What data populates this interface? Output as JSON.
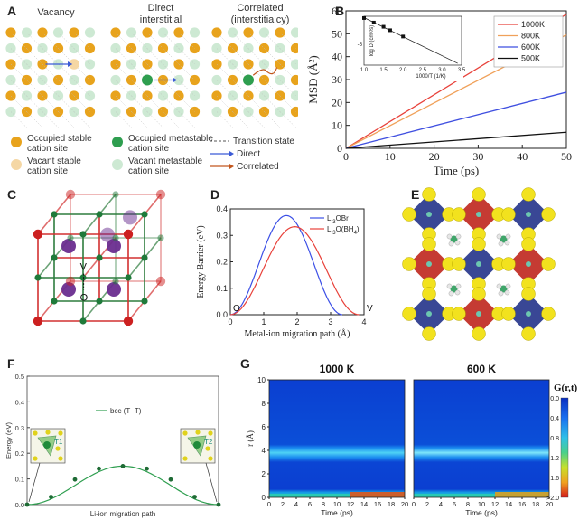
{
  "panels": {
    "a": {
      "label": "A",
      "titles": [
        "Vacancy",
        "Direct interstitial",
        "Correlated (interstitialcy)"
      ],
      "title_lines": {
        "direct": [
          "Direct",
          "interstitial"
        ],
        "correlated": [
          "Correlated",
          "(interstitialcy)"
        ]
      },
      "legend": {
        "occupied_stable": [
          "Occupied stable",
          "cation site"
        ],
        "vacant_stable": [
          "Vacant stable",
          "cation site"
        ],
        "occupied_metastable": [
          "Occupied metastable",
          "cation site"
        ],
        "vacant_metastable": [
          "Vacant metastable",
          "cation site"
        ],
        "transition": "Transition state",
        "direct": "Direct",
        "correlated": "Correlated"
      },
      "colors": {
        "occupied_stable": "#e8a31c",
        "vacant_stable": "#f5d7a4",
        "occupied_metastable": "#2e9e4f",
        "vacant_metastable": "#cde9d3",
        "direct": "#3b5bd6",
        "correlated": "#c2561d"
      }
    },
    "b": {
      "label": "B"
    },
    "c": {
      "label": "C",
      "atom_labels": [
        "V",
        "O"
      ]
    },
    "d": {
      "label": "D",
      "end_labels": [
        "O",
        "V"
      ]
    },
    "e": {
      "label": "E"
    },
    "f": {
      "label": "F",
      "site_labels": [
        "T1",
        "T2"
      ]
    },
    "g": {
      "label": "G"
    }
  },
  "chart_data": [
    {
      "id": "b",
      "type": "line",
      "xlabel": "Time (ps)",
      "ylabel": "MSD (Å²)",
      "xlim": [
        0,
        50
      ],
      "ylim": [
        0,
        60
      ],
      "xticks": [
        0,
        10,
        20,
        30,
        40,
        50
      ],
      "yticks": [
        0,
        10,
        20,
        30,
        40,
        50,
        60
      ],
      "legend_position": "top-right",
      "series": [
        {
          "name": "1000K",
          "color": "#e8413a",
          "x": [
            0,
            50
          ],
          "y": [
            0,
            58.5
          ]
        },
        {
          "name": "800K",
          "color": "#f0a15a",
          "x": [
            0,
            50
          ],
          "y": [
            0,
            49.5
          ]
        },
        {
          "name": "600K",
          "color": "#3f4fe0",
          "x": [
            0,
            50
          ],
          "y": [
            0,
            24.5
          ]
        },
        {
          "name": "500K",
          "color": "#111111",
          "x": [
            0,
            50
          ],
          "y": [
            0,
            7
          ]
        }
      ],
      "inset": {
        "type": "scatter",
        "xlabel": "1000/T (1/K)",
        "ylabel": "log D (cm²/s)",
        "xlim": [
          1.0,
          3.5
        ],
        "ylim": [
          -5.6,
          -4.2
        ],
        "xticks": [
          "1.0",
          "1.5",
          "2.0",
          "2.5",
          "3.0",
          "3.5"
        ],
        "yticks": [
          "-5"
        ],
        "x": [
          1.0,
          1.25,
          1.5,
          1.67,
          2.0
        ],
        "y": [
          -4.25,
          -4.38,
          -4.5,
          -4.6,
          -4.78
        ],
        "fit_line": {
          "x": [
            1.0,
            3.4
          ],
          "y": [
            -4.24,
            -5.55
          ]
        }
      }
    },
    {
      "id": "d",
      "type": "line",
      "xlabel": "Metal-ion migration path (Å)",
      "ylabel": "Energy Barrier (eV)",
      "xlim": [
        0,
        4
      ],
      "ylim": [
        0,
        0.4
      ],
      "xticks": [
        0,
        1,
        2,
        3,
        4
      ],
      "yticks": [
        0.0,
        0.1,
        0.2,
        0.3,
        0.4
      ],
      "legend_position": "top-right",
      "series": [
        {
          "name": "Li3OBr",
          "name_html": [
            "Li",
            "3",
            "OBr",
            ""
          ],
          "color": "#3b4fe6",
          "peak_x": 1.72,
          "end_x": 3.35,
          "peak_y": 0.375
        },
        {
          "name": "Li3O(BH4)",
          "name_html": [
            "Li",
            "3",
            "O(BH",
            "4",
            ")"
          ],
          "color": "#e8413a",
          "peak_x": 2.15,
          "end_x": 3.85,
          "peak_y": 0.333
        }
      ]
    },
    {
      "id": "f",
      "type": "line",
      "xlabel": "Li-ion migration path",
      "ylabel": "Energy (eV)",
      "xlim": [
        0,
        1
      ],
      "ylim": [
        0,
        0.5
      ],
      "yticks": [
        "0.0",
        "0.1",
        "0.2",
        "0.3",
        "0.4",
        "0.5"
      ],
      "legend_position": "top-center",
      "series": [
        {
          "name": "bcc (T−T)",
          "color": "#2e9e4f",
          "x": [
            0,
            0.125,
            0.25,
            0.375,
            0.5,
            0.625,
            0.75,
            0.875,
            1.0
          ],
          "y": [
            0,
            0.03,
            0.098,
            0.14,
            0.15,
            0.14,
            0.098,
            0.03,
            0
          ]
        }
      ]
    },
    {
      "id": "g",
      "type": "heatmap",
      "titles": [
        "1000 K",
        "600 K"
      ],
      "xlabel": "Time (ps)",
      "ylabel": "r (Å)",
      "xlim": [
        0,
        20
      ],
      "ylim": [
        0,
        10
      ],
      "xticks": [
        0,
        2,
        4,
        6,
        8,
        10,
        12,
        14,
        16,
        18,
        20
      ],
      "yticks": [
        0,
        2,
        4,
        6,
        8,
        10
      ],
      "colorbar": {
        "label": "G(r,t)",
        "ticks": [
          "0.0",
          "0.4",
          "0.8",
          "1.2",
          "1.6",
          ">2.0"
        ]
      }
    }
  ]
}
